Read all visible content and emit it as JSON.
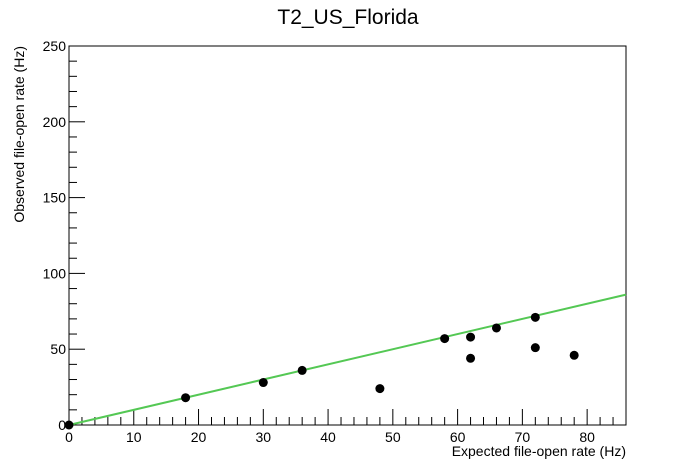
{
  "chart_data": {
    "type": "scatter",
    "title": "T2_US_Florida",
    "xlabel": "Expected file-open rate (Hz)",
    "ylabel": "Observed file-open rate (Hz)",
    "xlim": [
      0,
      86
    ],
    "ylim": [
      0,
      250
    ],
    "x_ticks": [
      0,
      10,
      20,
      30,
      40,
      50,
      60,
      70,
      80
    ],
    "y_ticks": [
      0,
      50,
      100,
      150,
      200,
      250
    ],
    "grid": false,
    "legend": "none",
    "points": [
      {
        "x": 0,
        "y": 0
      },
      {
        "x": 18,
        "y": 18
      },
      {
        "x": 30,
        "y": 28
      },
      {
        "x": 36,
        "y": 36
      },
      {
        "x": 48,
        "y": 24
      },
      {
        "x": 58,
        "y": 57
      },
      {
        "x": 62,
        "y": 58
      },
      {
        "x": 62,
        "y": 44
      },
      {
        "x": 66,
        "y": 64
      },
      {
        "x": 72,
        "y": 71
      },
      {
        "x": 72,
        "y": 51
      },
      {
        "x": 78,
        "y": 46
      }
    ],
    "fit_line": {
      "x": [
        0,
        86
      ],
      "y": [
        0,
        86
      ]
    },
    "colors": {
      "points": "#000000",
      "fit_line": "#54c854",
      "axes": "#000000"
    }
  }
}
